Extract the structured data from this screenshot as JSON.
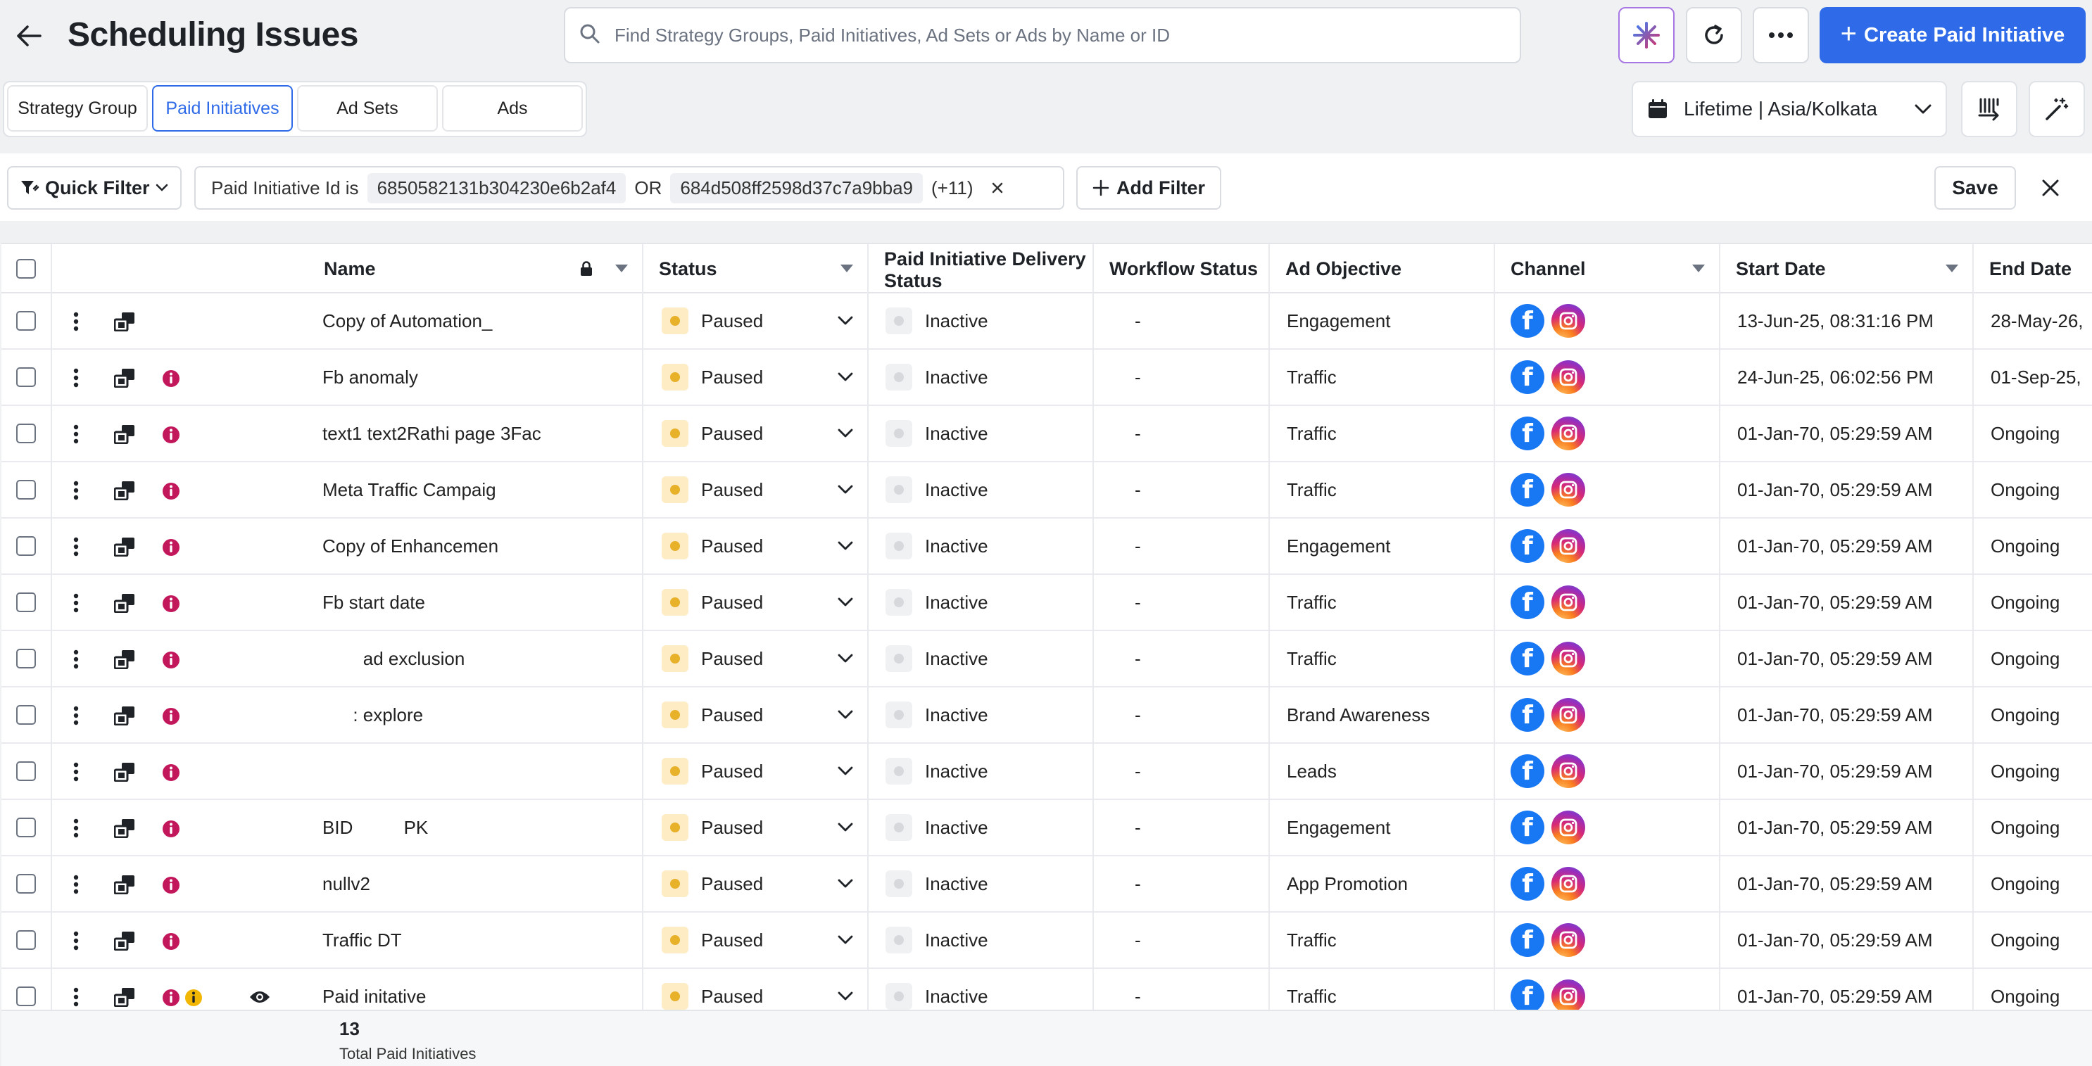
{
  "header": {
    "title": "Scheduling Issues",
    "search_placeholder": "Find Strategy Groups, Paid Initiatives, Ad Sets or Ads by Name or ID",
    "create_label": "Create Paid Initiative"
  },
  "tabs": [
    {
      "label": "Strategy Group",
      "active": false
    },
    {
      "label": "Paid Initiatives",
      "active": true
    },
    {
      "label": "Ad Sets",
      "active": false
    },
    {
      "label": "Ads",
      "active": false
    }
  ],
  "date_range": "Lifetime | Asia/Kolkata",
  "filter": {
    "quick_filter_label": "Quick Filter",
    "field": "Paid Initiative Id is",
    "value1": "6850582131b304230e6b2af4",
    "operator": "OR",
    "value2": "684d508ff2598d37c7a9bba9",
    "more": "(+11)",
    "add_filter_label": "Add Filter",
    "save_label": "Save"
  },
  "columns": {
    "name": "Name",
    "status": "Status",
    "delivery": "Paid Initiative Delivery Status",
    "workflow": "Workflow Status",
    "objective": "Ad Objective",
    "channel": "Channel",
    "start": "Start Date",
    "end": "End Date"
  },
  "rows": [
    {
      "name": "Copy of Automation_",
      "status": "Paused",
      "delivery": "Inactive",
      "workflow": "-",
      "objective": "Engagement",
      "start": "13-Jun-25, 08:31:16 PM",
      "end": "28-May-26,",
      "error": false,
      "warn": false,
      "eye": false
    },
    {
      "name": "Fb anomaly",
      "status": "Paused",
      "delivery": "Inactive",
      "workflow": "-",
      "objective": "Traffic",
      "start": "24-Jun-25, 06:02:56 PM",
      "end": "01-Sep-25,",
      "error": true,
      "warn": false,
      "eye": false
    },
    {
      "name": "text1 text2Rathi page 3Fac",
      "status": "Paused",
      "delivery": "Inactive",
      "workflow": "-",
      "objective": "Traffic",
      "start": "01-Jan-70, 05:29:59 AM",
      "end": "Ongoing",
      "error": true,
      "warn": false,
      "eye": false
    },
    {
      "name": "Meta Traffic Campaig",
      "status": "Paused",
      "delivery": "Inactive",
      "workflow": "-",
      "objective": "Traffic",
      "start": "01-Jan-70, 05:29:59 AM",
      "end": "Ongoing",
      "error": true,
      "warn": false,
      "eye": false
    },
    {
      "name": "Copy of Enhancemen",
      "status": "Paused",
      "delivery": "Inactive",
      "workflow": "-",
      "objective": "Engagement",
      "start": "01-Jan-70, 05:29:59 AM",
      "end": "Ongoing",
      "error": true,
      "warn": false,
      "eye": false
    },
    {
      "name": "Fb start date",
      "status": "Paused",
      "delivery": "Inactive",
      "workflow": "-",
      "objective": "Traffic",
      "start": "01-Jan-70, 05:29:59 AM",
      "end": "Ongoing",
      "error": true,
      "warn": false,
      "eye": false
    },
    {
      "name": "        ad exclusion",
      "status": "Paused",
      "delivery": "Inactive",
      "workflow": "-",
      "objective": "Traffic",
      "start": "01-Jan-70, 05:29:59 AM",
      "end": "Ongoing",
      "error": true,
      "warn": false,
      "eye": false
    },
    {
      "name": "      : explore",
      "status": "Paused",
      "delivery": "Inactive",
      "workflow": "-",
      "objective": "Brand Awareness",
      "start": "01-Jan-70, 05:29:59 AM",
      "end": "Ongoing",
      "error": true,
      "warn": false,
      "eye": false
    },
    {
      "name": "",
      "status": "Paused",
      "delivery": "Inactive",
      "workflow": "-",
      "objective": "Leads",
      "start": "01-Jan-70, 05:29:59 AM",
      "end": "Ongoing",
      "error": true,
      "warn": false,
      "eye": false
    },
    {
      "name": "BID          PK",
      "status": "Paused",
      "delivery": "Inactive",
      "workflow": "-",
      "objective": "Engagement",
      "start": "01-Jan-70, 05:29:59 AM",
      "end": "Ongoing",
      "error": true,
      "warn": false,
      "eye": false
    },
    {
      "name": "nullv2",
      "status": "Paused",
      "delivery": "Inactive",
      "workflow": "-",
      "objective": "App Promotion",
      "start": "01-Jan-70, 05:29:59 AM",
      "end": "Ongoing",
      "error": true,
      "warn": false,
      "eye": false
    },
    {
      "name": "Traffic DT",
      "status": "Paused",
      "delivery": "Inactive",
      "workflow": "-",
      "objective": "Traffic",
      "start": "01-Jan-70, 05:29:59 AM",
      "end": "Ongoing",
      "error": true,
      "warn": false,
      "eye": false
    },
    {
      "name": "Paid initative",
      "status": "Paused",
      "delivery": "Inactive",
      "workflow": "-",
      "objective": "Traffic",
      "start": "01-Jan-70, 05:29:59 AM",
      "end": "Ongoing",
      "error": true,
      "warn": true,
      "eye": true
    }
  ],
  "footer": {
    "count": "13",
    "label": "Total Paid Initiatives"
  },
  "colors": {
    "accent": "#2f6be8",
    "paused": "#e8b12a",
    "error": "#c2185b",
    "warn": "#f2b705",
    "facebook": "#1877f2"
  }
}
